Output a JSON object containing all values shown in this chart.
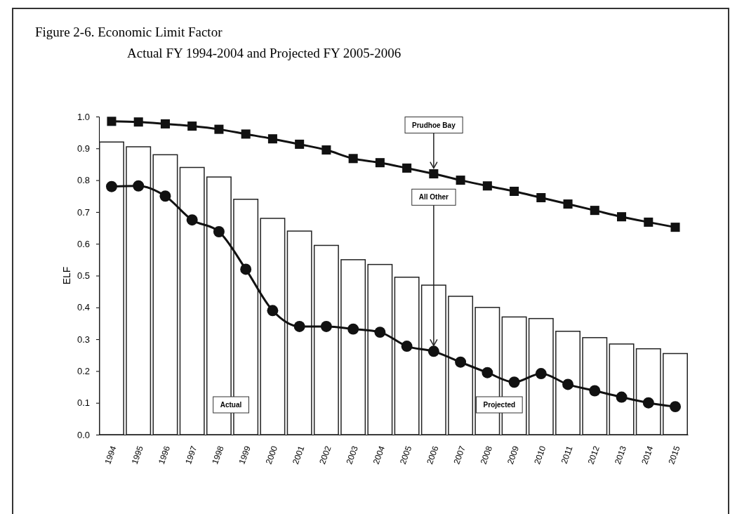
{
  "chart_data": {
    "type": "bar",
    "title": "Figure 2-6.  Economic Limit Factor",
    "subtitle": "Actual FY 1994-2004 and Projected FY 2005-2006",
    "ylabel": "ELF",
    "categories": [
      "1994",
      "1995",
      "1996",
      "1997",
      "1998",
      "1999",
      "2000",
      "2001",
      "2002",
      "2003",
      "2004",
      "2005",
      "2006",
      "2007",
      "2008",
      "2009",
      "2010",
      "2011",
      "2012",
      "2013",
      "2014",
      "2015"
    ],
    "ylim": [
      0,
      1
    ],
    "yticks": [
      {
        "value": 0,
        "label": "0.0"
      },
      {
        "value": 0.1,
        "label": "0.1"
      },
      {
        "value": 0.2,
        "label": "0.2"
      },
      {
        "value": 0.3,
        "label": "0.3"
      },
      {
        "value": 0.4,
        "label": "0.4"
      },
      {
        "value": 0.5,
        "label": "0.5"
      },
      {
        "value": 0.6,
        "label": "0.6"
      },
      {
        "value": 0.7,
        "label": "0.7"
      },
      {
        "value": 0.8,
        "label": "0.8"
      },
      {
        "value": 0.9,
        "label": "0.9"
      },
      {
        "value": 1,
        "label": "1.0"
      }
    ],
    "series": [
      {
        "color": "#ffffff",
        "values": [
          0.92,
          0.905,
          0.88,
          0.84,
          0.81,
          0.74,
          0.68,
          0.64,
          0.595,
          0.55,
          0.535,
          0.495,
          0.47,
          0.435,
          0.4,
          0.37,
          0.365,
          0.325,
          0.305,
          0.285,
          0.27,
          0.255
        ]
      },
      {
        "type": "line",
        "name": "Prudhoe Bay",
        "color": "#111111",
        "marker": "square",
        "values": [
          0.985,
          0.983,
          0.977,
          0.97,
          0.96,
          0.945,
          0.93,
          0.913,
          0.895,
          0.868,
          0.855,
          0.838,
          0.82,
          0.8,
          0.782,
          0.765,
          0.745,
          0.725,
          0.705,
          0.685,
          0.668,
          0.652
        ]
      },
      {
        "type": "line",
        "name": "All Other",
        "color": "#111111",
        "marker": "circle",
        "values": [
          0.78,
          0.782,
          0.75,
          0.675,
          0.638,
          0.52,
          0.39,
          0.34,
          0.34,
          0.332,
          0.322,
          0.278,
          0.262,
          0.228,
          0.195,
          0.165,
          0.192,
          0.158,
          0.138,
          0.118,
          0.1,
          0.088
        ]
      }
    ],
    "annotations": [
      "Actual",
      "Projected"
    ],
    "legend": false,
    "grid": false
  }
}
